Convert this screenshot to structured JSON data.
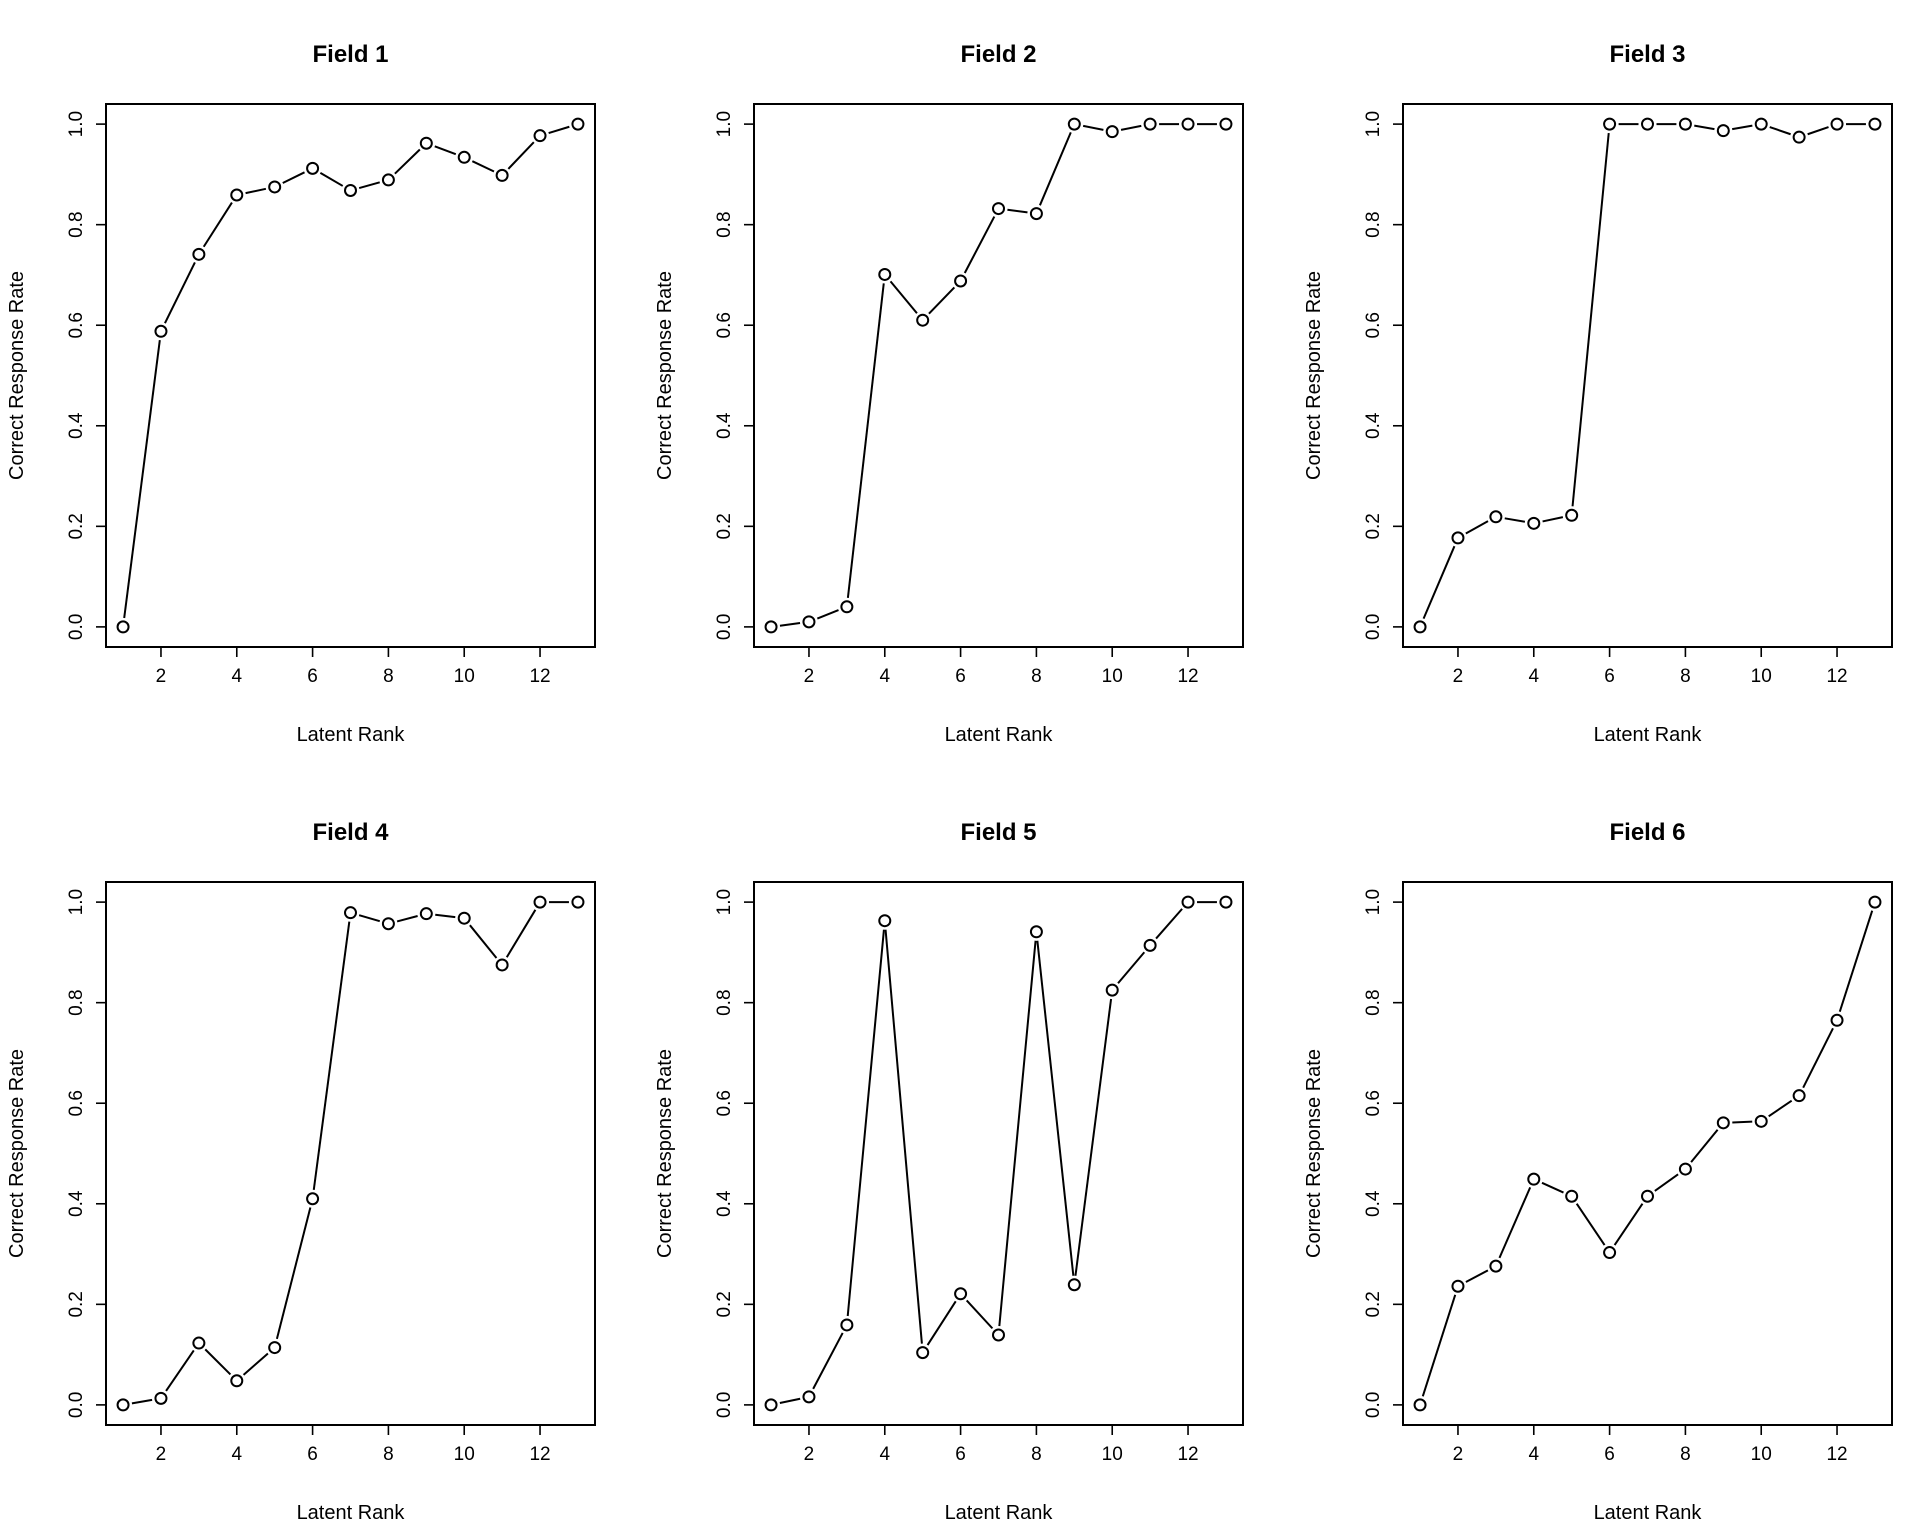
{
  "chart_data": [
    {
      "type": "line",
      "title": "Field 1",
      "xlabel": "Latent Rank",
      "ylabel": "Correct Response Rate",
      "x": [
        1,
        2,
        3,
        4,
        5,
        6,
        7,
        8,
        9,
        10,
        11,
        12,
        13
      ],
      "y": [
        0.0,
        0.588,
        0.741,
        0.859,
        0.875,
        0.912,
        0.868,
        0.889,
        0.962,
        0.934,
        0.898,
        0.977,
        1.0
      ],
      "xticks": [
        "2",
        "4",
        "6",
        "8",
        "10",
        "12"
      ],
      "yticks": [
        "0.0",
        "0.2",
        "0.4",
        "0.6",
        "0.8",
        "1.0"
      ],
      "xlim": [
        0.55,
        13.45
      ],
      "ylim": [
        -0.04,
        1.04
      ]
    },
    {
      "type": "line",
      "title": "Field 2",
      "xlabel": "Latent Rank",
      "ylabel": "Correct Response Rate",
      "x": [
        1,
        2,
        3,
        4,
        5,
        6,
        7,
        8,
        9,
        10,
        11,
        12,
        13
      ],
      "y": [
        0.0,
        0.01,
        0.04,
        0.701,
        0.61,
        0.688,
        0.832,
        0.822,
        1.0,
        0.985,
        1.0,
        1.0,
        1.0
      ],
      "xticks": [
        "2",
        "4",
        "6",
        "8",
        "10",
        "12"
      ],
      "yticks": [
        "0.0",
        "0.2",
        "0.4",
        "0.6",
        "0.8",
        "1.0"
      ],
      "xlim": [
        0.55,
        13.45
      ],
      "ylim": [
        -0.04,
        1.04
      ]
    },
    {
      "type": "line",
      "title": "Field 3",
      "xlabel": "Latent Rank",
      "ylabel": "Correct Response Rate",
      "x": [
        1,
        2,
        3,
        4,
        5,
        6,
        7,
        8,
        9,
        10,
        11,
        12,
        13
      ],
      "y": [
        0.0,
        0.177,
        0.219,
        0.206,
        0.222,
        1.0,
        1.0,
        1.0,
        0.987,
        1.0,
        0.974,
        1.0,
        1.0
      ],
      "xticks": [
        "2",
        "4",
        "6",
        "8",
        "10",
        "12"
      ],
      "yticks": [
        "0.0",
        "0.2",
        "0.4",
        "0.6",
        "0.8",
        "1.0"
      ],
      "xlim": [
        0.55,
        13.45
      ],
      "ylim": [
        -0.04,
        1.04
      ]
    },
    {
      "type": "line",
      "title": "Field 4",
      "xlabel": "Latent Rank",
      "ylabel": "Correct Response Rate",
      "x": [
        1,
        2,
        3,
        4,
        5,
        6,
        7,
        8,
        9,
        10,
        11,
        12,
        13
      ],
      "y": [
        0.0,
        0.013,
        0.123,
        0.048,
        0.114,
        0.41,
        0.979,
        0.957,
        0.977,
        0.968,
        0.875,
        1.0,
        1.0
      ],
      "xticks": [
        "2",
        "4",
        "6",
        "8",
        "10",
        "12"
      ],
      "yticks": [
        "0.0",
        "0.2",
        "0.4",
        "0.6",
        "0.8",
        "1.0"
      ],
      "xlim": [
        0.55,
        13.45
      ],
      "ylim": [
        -0.04,
        1.04
      ]
    },
    {
      "type": "line",
      "title": "Field 5",
      "xlabel": "Latent Rank",
      "ylabel": "Correct Response Rate",
      "x": [
        1,
        2,
        3,
        4,
        5,
        6,
        7,
        8,
        9,
        10,
        11,
        12,
        13
      ],
      "y": [
        0.0,
        0.016,
        0.159,
        0.963,
        0.104,
        0.221,
        0.139,
        0.941,
        0.239,
        0.825,
        0.914,
        1.0,
        1.0
      ],
      "xticks": [
        "2",
        "4",
        "6",
        "8",
        "10",
        "12"
      ],
      "yticks": [
        "0.0",
        "0.2",
        "0.4",
        "0.6",
        "0.8",
        "1.0"
      ],
      "xlim": [
        0.55,
        13.45
      ],
      "ylim": [
        -0.04,
        1.04
      ]
    },
    {
      "type": "line",
      "title": "Field 6",
      "xlabel": "Latent Rank",
      "ylabel": "Correct Response Rate",
      "x": [
        1,
        2,
        3,
        4,
        5,
        6,
        7,
        8,
        9,
        10,
        11,
        12,
        13
      ],
      "y": [
        0.0,
        0.236,
        0.276,
        0.449,
        0.415,
        0.303,
        0.415,
        0.469,
        0.561,
        0.564,
        0.615,
        0.765,
        1.0
      ],
      "xticks": [
        "2",
        "4",
        "6",
        "8",
        "10",
        "12"
      ],
      "yticks": [
        "0.0",
        "0.2",
        "0.4",
        "0.6",
        "0.8",
        "1.0"
      ],
      "xlim": [
        0.55,
        13.45
      ],
      "ylim": [
        -0.04,
        1.04
      ]
    }
  ]
}
